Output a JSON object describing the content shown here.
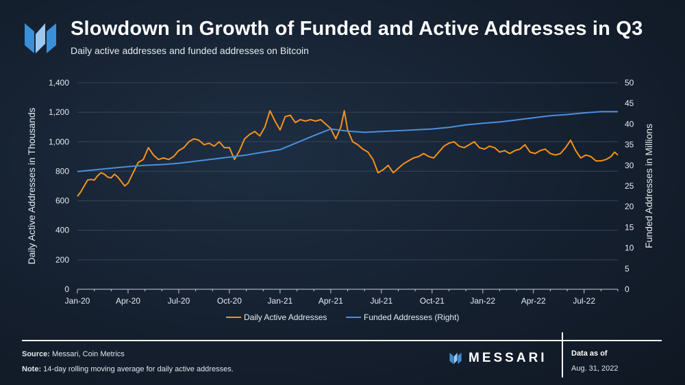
{
  "header": {
    "title": "Slowdown in Growth of Funded and Active Addresses in Q3",
    "subtitle": "Daily active addresses and funded addresses on Bitcoin"
  },
  "footer": {
    "source_label": "Source:",
    "source_text": " Messari, Coin Metrics",
    "note_label": "Note:",
    "note_text": " 14-day rolling moving average for daily active addresses.",
    "brand": "MESSARI",
    "asof_label": "Data as of",
    "asof_date": "Aug. 31, 2022"
  },
  "colors": {
    "background": "#15202f",
    "accent_orange": "#f7931a",
    "accent_blue": "#4a90e2",
    "logo_blue": "#3a8fd9",
    "grid": "#34465c"
  },
  "chart_data": {
    "type": "line",
    "xlabel": "",
    "ylabel": "Daily Active Addresses in Thousands",
    "ylabel_right": "Funded Addresses in Millions",
    "ylim": [
      0,
      1400
    ],
    "ylim_right": [
      0,
      50
    ],
    "yticks": [
      "0",
      "200",
      "400",
      "600",
      "800",
      "1,000",
      "1,200",
      "1,400"
    ],
    "yticks_right": [
      "0",
      "5",
      "10",
      "15",
      "20",
      "25",
      "30",
      "35",
      "40",
      "45",
      "50"
    ],
    "xticks": [
      "Jan-20",
      "Apr-20",
      "Jul-20",
      "Oct-20",
      "Jan-21",
      "Apr-21",
      "Jul-21",
      "Oct-21",
      "Jan-22",
      "Apr-22",
      "Jul-22"
    ],
    "x_range_months": [
      0,
      32
    ],
    "grid": true,
    "legend": "bottom-center",
    "series": [
      {
        "name": "Daily Active Addresses",
        "axis": "left",
        "color": "#f7931a",
        "x": [
          0,
          0.2,
          0.4,
          0.6,
          0.8,
          1.0,
          1.2,
          1.4,
          1.6,
          1.8,
          2.0,
          2.2,
          2.4,
          2.6,
          2.8,
          3.0,
          3.3,
          3.6,
          3.9,
          4.2,
          4.5,
          4.8,
          5.1,
          5.4,
          5.7,
          6.0,
          6.3,
          6.6,
          6.9,
          7.2,
          7.5,
          7.8,
          8.1,
          8.4,
          8.7,
          9.0,
          9.3,
          9.6,
          9.9,
          10.2,
          10.5,
          10.8,
          11.1,
          11.4,
          11.7,
          12.0,
          12.3,
          12.6,
          12.9,
          13.2,
          13.5,
          13.8,
          14.1,
          14.4,
          14.7,
          15.0,
          15.3,
          15.6,
          15.8,
          16.0,
          16.3,
          16.6,
          16.9,
          17.2,
          17.5,
          17.8,
          18.1,
          18.4,
          18.7,
          19.0,
          19.3,
          19.6,
          19.9,
          20.2,
          20.5,
          20.8,
          21.1,
          21.4,
          21.7,
          22.0,
          22.3,
          22.6,
          22.9,
          23.2,
          23.5,
          23.8,
          24.1,
          24.4,
          24.7,
          25.0,
          25.3,
          25.6,
          25.9,
          26.2,
          26.5,
          26.8,
          27.1,
          27.4,
          27.7,
          28.0,
          28.3,
          28.6,
          28.9,
          29.2,
          29.5,
          29.8,
          30.1,
          30.4,
          30.7,
          31.0,
          31.3,
          31.6,
          31.8,
          32.0
        ],
        "y": [
          630,
          660,
          700,
          740,
          745,
          740,
          770,
          790,
          780,
          760,
          755,
          780,
          760,
          730,
          700,
          720,
          790,
          860,
          880,
          960,
          910,
          880,
          890,
          880,
          900,
          940,
          960,
          1000,
          1020,
          1010,
          980,
          990,
          970,
          1000,
          960,
          960,
          880,
          940,
          1020,
          1050,
          1070,
          1040,
          1100,
          1210,
          1140,
          1080,
          1170,
          1180,
          1130,
          1150,
          1140,
          1150,
          1140,
          1150,
          1120,
          1090,
          1020,
          1100,
          1210,
          1080,
          1000,
          980,
          950,
          930,
          880,
          790,
          810,
          840,
          790,
          820,
          850,
          870,
          890,
          900,
          920,
          900,
          890,
          930,
          970,
          990,
          1000,
          970,
          960,
          980,
          1000,
          960,
          950,
          970,
          960,
          930,
          940,
          920,
          940,
          950,
          980,
          930,
          920,
          940,
          950,
          920,
          910,
          920,
          960,
          1010,
          940,
          890,
          910,
          900,
          870,
          870,
          880,
          900,
          930,
          910
        ]
      },
      {
        "name": "Funded Addresses (Right)",
        "axis": "right",
        "color": "#4a90e2",
        "x": [
          0,
          1,
          2,
          3,
          4,
          5,
          6,
          7,
          8,
          9,
          10,
          11,
          12,
          13,
          14,
          15,
          16,
          17,
          18,
          19,
          20,
          21,
          22,
          23,
          24,
          25,
          26,
          27,
          28,
          29,
          30,
          31,
          32
        ],
        "y": [
          28.5,
          28.9,
          29.3,
          29.7,
          30.0,
          30.2,
          30.5,
          31.0,
          31.5,
          32.0,
          32.5,
          33.2,
          33.8,
          35.5,
          37.2,
          38.8,
          38.3,
          38.0,
          38.2,
          38.4,
          38.6,
          38.8,
          39.2,
          39.8,
          40.2,
          40.5,
          41.0,
          41.5,
          42.0,
          42.3,
          42.7,
          43.0,
          43.0
        ]
      }
    ]
  }
}
